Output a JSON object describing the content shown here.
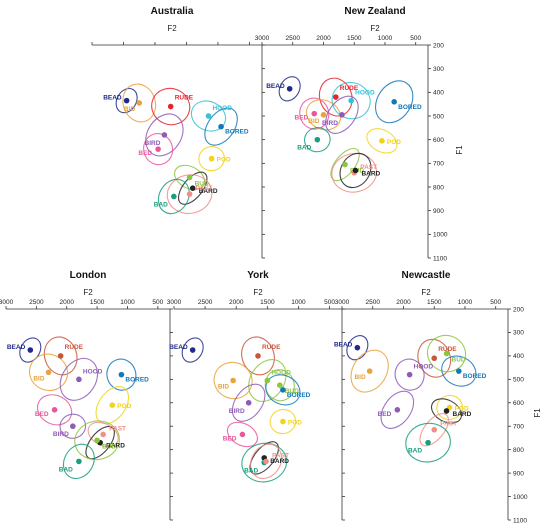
{
  "figure": {
    "f2_label": "F2",
    "f1_label": "F1",
    "f2_ticks": [
      3000,
      2500,
      2000,
      1500,
      1000,
      500
    ],
    "f1_ticks": [
      200,
      300,
      400,
      500,
      600,
      700,
      800,
      900,
      1000,
      1100
    ]
  },
  "chart_data": [
    {
      "type": "scatter",
      "title": "Australia",
      "xlabel": "F2",
      "ylabel": "",
      "xlim": [
        3000,
        300
      ],
      "ylim": [
        200,
        1100
      ],
      "axis_side": "right",
      "show_x_ticks": false,
      "show_y_ticks": false,
      "points": [
        {
          "label": "BEAD",
          "x": 2450,
          "y": 435,
          "color": "#1f2a8a"
        },
        {
          "label": "BID",
          "x": 2250,
          "y": 445,
          "color": "#e8a33a"
        },
        {
          "label": "RUDE",
          "x": 1750,
          "y": 460,
          "color": "#e8222e"
        },
        {
          "label": "BIRD",
          "x": 1850,
          "y": 580,
          "color": "#8e5bb5"
        },
        {
          "label": "BED",
          "x": 1950,
          "y": 640,
          "color": "#e8579c"
        },
        {
          "label": "HOOD",
          "x": 1150,
          "y": 500,
          "color": "#33c3d6"
        },
        {
          "label": "BORED",
          "x": 950,
          "y": 545,
          "color": "#1478b8"
        },
        {
          "label": "POD",
          "x": 1100,
          "y": 680,
          "color": "#f2d31c"
        },
        {
          "label": "BUD",
          "x": 1450,
          "y": 760,
          "color": "#8cc63f"
        },
        {
          "label": "BARD",
          "x": 1400,
          "y": 805,
          "color": "#222222"
        },
        {
          "label": "PAST",
          "x": 1450,
          "y": 830,
          "color": "#f08f87"
        },
        {
          "label": "BAD",
          "x": 1700,
          "y": 840,
          "color": "#1a9e7e"
        }
      ]
    },
    {
      "type": "scatter",
      "title": "New Zealand",
      "xlabel": "F2",
      "ylabel": "F1",
      "xlim": [
        3000,
        300
      ],
      "ylim": [
        200,
        1100
      ],
      "axis_side": "right",
      "show_x_ticks": true,
      "show_y_ticks": true,
      "points": [
        {
          "label": "BEAD",
          "x": 2550,
          "y": 385,
          "color": "#1f2a8a"
        },
        {
          "label": "RUDE",
          "x": 1800,
          "y": 420,
          "color": "#e8222e"
        },
        {
          "label": "HOOD",
          "x": 1550,
          "y": 435,
          "color": "#33c3d6"
        },
        {
          "label": "BORED",
          "x": 850,
          "y": 440,
          "color": "#1478b8"
        },
        {
          "label": "BED",
          "x": 2150,
          "y": 490,
          "color": "#e8579c"
        },
        {
          "label": "BID",
          "x": 2000,
          "y": 495,
          "color": "#e8a33a"
        },
        {
          "label": "BIRD",
          "x": 1700,
          "y": 495,
          "color": "#8e5bb5"
        },
        {
          "label": "BAD",
          "x": 2100,
          "y": 600,
          "color": "#1a9e7e"
        },
        {
          "label": "POD",
          "x": 1050,
          "y": 605,
          "color": "#f2d31c"
        },
        {
          "label": "BUD",
          "x": 1650,
          "y": 705,
          "color": "#8cc63f"
        },
        {
          "label": "PAST",
          "x": 1500,
          "y": 740,
          "color": "#f08f87"
        },
        {
          "label": "BARD",
          "x": 1480,
          "y": 730,
          "color": "#222222"
        }
      ]
    },
    {
      "type": "scatter",
      "title": "London",
      "xlabel": "F2",
      "ylabel": "",
      "xlim": [
        3000,
        300
      ],
      "ylim": [
        200,
        1100
      ],
      "axis_side": "right",
      "show_x_ticks": true,
      "show_y_ticks": false,
      "points": [
        {
          "label": "BEAD",
          "x": 2600,
          "y": 375,
          "color": "#1f2a8a"
        },
        {
          "label": "RUDE",
          "x": 2100,
          "y": 400,
          "color": "#c9553b"
        },
        {
          "label": "BID",
          "x": 2300,
          "y": 470,
          "color": "#e8a33a"
        },
        {
          "label": "HOOD",
          "x": 1800,
          "y": 500,
          "color": "#8e5bb5"
        },
        {
          "label": "BORED",
          "x": 1100,
          "y": 480,
          "color": "#1478b8"
        },
        {
          "label": "BED",
          "x": 2200,
          "y": 630,
          "color": "#e8579c"
        },
        {
          "label": "POD",
          "x": 1250,
          "y": 610,
          "color": "#f2d31c"
        },
        {
          "label": "BIRD",
          "x": 1900,
          "y": 700,
          "color": "#8e5bb5"
        },
        {
          "label": "PAST",
          "x": 1400,
          "y": 735,
          "color": "#f08f87"
        },
        {
          "label": "BARD",
          "x": 1450,
          "y": 770,
          "color": "#222222"
        },
        {
          "label": "BUD",
          "x": 1500,
          "y": 760,
          "color": "#8cc63f"
        },
        {
          "label": "BAD",
          "x": 1800,
          "y": 850,
          "color": "#1a9e7e"
        }
      ]
    },
    {
      "type": "scatter",
      "title": "York",
      "xlabel": "F2",
      "ylabel": "",
      "xlim": [
        3000,
        300
      ],
      "ylim": [
        200,
        1100
      ],
      "axis_side": "right",
      "show_x_ticks": true,
      "show_y_ticks": false,
      "points": [
        {
          "label": "BEAD",
          "x": 2700,
          "y": 375,
          "color": "#1f2a8a"
        },
        {
          "label": "RUDE",
          "x": 1650,
          "y": 400,
          "color": "#c9553b"
        },
        {
          "label": "BID",
          "x": 2050,
          "y": 505,
          "color": "#e8a33a"
        },
        {
          "label": "HOOD",
          "x": 1500,
          "y": 505,
          "color": "#8cc63f"
        },
        {
          "label": "BUD",
          "x": 1300,
          "y": 525,
          "color": "#8cc63f"
        },
        {
          "label": "BORED",
          "x": 1250,
          "y": 545,
          "color": "#1478b8"
        },
        {
          "label": "BIRD",
          "x": 1800,
          "y": 600,
          "color": "#8e5bb5"
        },
        {
          "label": "POD",
          "x": 1250,
          "y": 680,
          "color": "#f2d31c"
        },
        {
          "label": "BED",
          "x": 1900,
          "y": 735,
          "color": "#e8579c"
        },
        {
          "label": "BARD",
          "x": 1550,
          "y": 835,
          "color": "#222222"
        },
        {
          "label": "BAD",
          "x": 1550,
          "y": 855,
          "color": "#1a9e7e"
        },
        {
          "label": "PAST",
          "x": 1520,
          "y": 850,
          "color": "#f08f87"
        }
      ]
    },
    {
      "type": "scatter",
      "title": "Newcastle",
      "xlabel": "F2",
      "ylabel": "F1",
      "xlim": [
        3000,
        300
      ],
      "ylim": [
        200,
        1100
      ],
      "axis_side": "right",
      "show_x_ticks": true,
      "show_y_ticks": true,
      "points": [
        {
          "label": "BEAD",
          "x": 2750,
          "y": 365,
          "color": "#1f2a8a"
        },
        {
          "label": "RUDE",
          "x": 1500,
          "y": 410,
          "color": "#c9553b"
        },
        {
          "label": "BUD",
          "x": 1300,
          "y": 390,
          "color": "#8cc63f"
        },
        {
          "label": "BID",
          "x": 2550,
          "y": 465,
          "color": "#e8a33a"
        },
        {
          "label": "HOOD",
          "x": 1900,
          "y": 480,
          "color": "#8e5bb5"
        },
        {
          "label": "BORED",
          "x": 1100,
          "y": 465,
          "color": "#1478b8"
        },
        {
          "label": "BED",
          "x": 2100,
          "y": 630,
          "color": "#8e5bb5"
        },
        {
          "label": "POD",
          "x": 1250,
          "y": 620,
          "color": "#f2d31c"
        },
        {
          "label": "BARD",
          "x": 1300,
          "y": 635,
          "color": "#222222"
        },
        {
          "label": "PAST",
          "x": 1500,
          "y": 715,
          "color": "#f08f87"
        },
        {
          "label": "BAD",
          "x": 1600,
          "y": 770,
          "color": "#1a9e7e"
        }
      ]
    }
  ]
}
